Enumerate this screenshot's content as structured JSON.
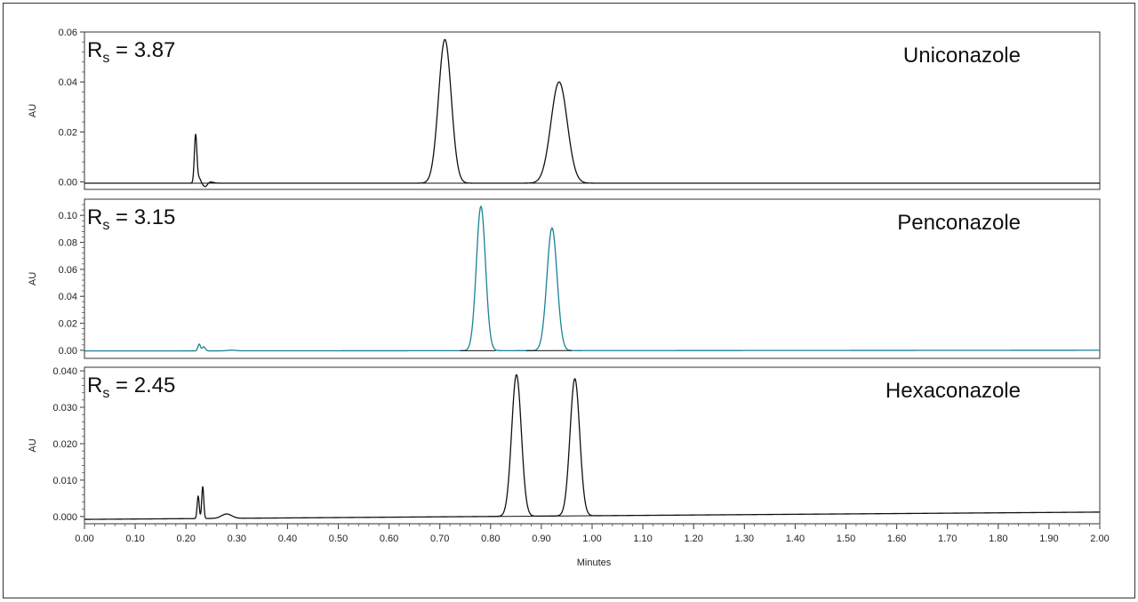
{
  "chart_data": [
    {
      "type": "line",
      "compound": "Uniconazole",
      "resolution": {
        "symbol": "R",
        "subscript": "s",
        "equals": "=",
        "value": "3.87"
      },
      "ylabel": "AU",
      "xlim": [
        0.0,
        2.0
      ],
      "ylim": [
        -0.003,
        0.06
      ],
      "yticks": [
        0.0,
        0.02,
        0.04,
        0.06
      ],
      "ytick_labels": [
        "0.00",
        "0.02",
        "0.04",
        "0.06"
      ],
      "color": "#111111",
      "baseline_y": -0.0005,
      "baseline_drift": 0.0,
      "series": [
        {
          "peaks": [
            {
              "x": 0.219,
              "y": 0.0195,
              "width": 0.0025
            },
            {
              "x": 0.226,
              "y": 0.002,
              "width": 0.003
            },
            {
              "x": 0.238,
              "y": -0.0015,
              "width": 0.004
            },
            {
              "x": 0.248,
              "y": 0.0005,
              "width": 0.006
            },
            {
              "x": 0.71,
              "y": 0.0575,
              "width": 0.0125
            },
            {
              "x": 0.935,
              "y": 0.0405,
              "width": 0.016
            }
          ]
        }
      ],
      "integration_baselines": [
        [
          0.68,
          0.0
        ],
        [
          1.0,
          0.0005
        ]
      ]
    },
    {
      "type": "line",
      "compound": "Penconazole",
      "resolution": {
        "symbol": "R",
        "subscript": "s",
        "equals": "=",
        "value": "3.15"
      },
      "ylabel": "AU",
      "xlim": [
        0.0,
        2.0
      ],
      "ylim": [
        -0.006,
        0.112
      ],
      "yticks": [
        0.0,
        0.02,
        0.04,
        0.06,
        0.08,
        0.1
      ],
      "ytick_labels": [
        "0.00",
        "0.02",
        "0.04",
        "0.06",
        "0.08",
        "0.10"
      ],
      "color": "#1a8296",
      "baseline_y": -0.0005,
      "baseline_drift": 0.0005,
      "series": [
        {
          "peaks": [
            {
              "x": 0.226,
              "y": 0.005,
              "width": 0.0025
            },
            {
              "x": 0.235,
              "y": 0.003,
              "width": 0.003
            },
            {
              "x": 0.29,
              "y": 0.0005,
              "width": 0.008
            },
            {
              "x": 0.781,
              "y": 0.107,
              "width": 0.009
            },
            {
              "x": 0.921,
              "y": 0.091,
              "width": 0.01
            }
          ]
        }
      ],
      "integration_baselines": [
        [
          0.74,
          0.81
        ],
        [
          0.87,
          0.96
        ]
      ]
    },
    {
      "type": "line",
      "compound": "Hexaconazole",
      "resolution": {
        "symbol": "R",
        "subscript": "s",
        "equals": "=",
        "value": "2.45"
      },
      "ylabel": "AU",
      "xlim": [
        0.0,
        2.0
      ],
      "ylim": [
        -0.002,
        0.041
      ],
      "yticks": [
        0.0,
        0.01,
        0.02,
        0.03,
        0.04
      ],
      "ytick_labels": [
        "0.000",
        "0.010",
        "0.020",
        "0.030",
        "0.040"
      ],
      "color": "#111111",
      "baseline_y": -0.0008,
      "baseline_drift": 0.002,
      "series": [
        {
          "peaks": [
            {
              "x": 0.224,
              "y": 0.0062,
              "width": 0.002
            },
            {
              "x": 0.233,
              "y": 0.0088,
              "width": 0.002
            },
            {
              "x": 0.28,
              "y": 0.0012,
              "width": 0.01
            },
            {
              "x": 0.851,
              "y": 0.0389,
              "width": 0.0095
            },
            {
              "x": 0.966,
              "y": 0.0377,
              "width": 0.0095
            }
          ]
        }
      ],
      "integration_baselines": [
        [
          0.8,
          1.0
        ]
      ]
    }
  ],
  "x_axis": {
    "label": "Minutes",
    "ticks": [
      0.0,
      0.1,
      0.2,
      0.3,
      0.4,
      0.5,
      0.6,
      0.7,
      0.8,
      0.9,
      1.0,
      1.1,
      1.2,
      1.3,
      1.4,
      1.5,
      1.6,
      1.7,
      1.8,
      1.9,
      2.0
    ],
    "tick_labels": [
      "0.00",
      "0.10",
      "0.20",
      "0.30",
      "0.40",
      "0.50",
      "0.60",
      "0.70",
      "0.80",
      "0.90",
      "1.00",
      "1.10",
      "1.20",
      "1.30",
      "1.40",
      "1.50",
      "1.60",
      "1.70",
      "1.80",
      "1.90",
      "2.00"
    ],
    "minor_step": 0.02
  }
}
